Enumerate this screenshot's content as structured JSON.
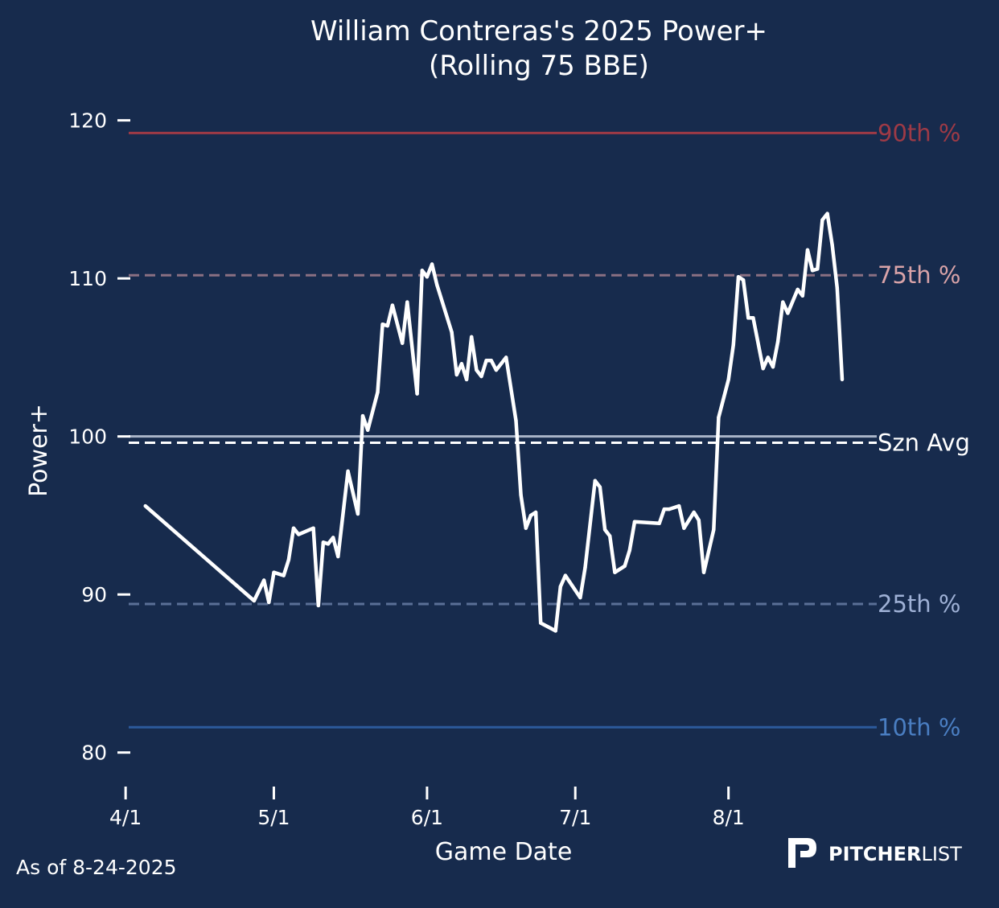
{
  "colors": {
    "background": "#172b4d",
    "series": "#ffffff",
    "p90": "#9e3a46",
    "p75": "#d9a3a8",
    "p75_line": "#8a7082",
    "p25": "#9fb1d6",
    "p25_line": "#5a6f96",
    "p10": "#4a7ec2",
    "p10_line": "#2c5a9c",
    "league_avg_line": "#a9b4c8",
    "text": "#ffffff"
  },
  "chart_data": {
    "type": "line",
    "title": "William Contreras's 2025 Power+",
    "subtitle": "(Rolling 75 BBE)",
    "xlabel": "Game Date",
    "ylabel": "Power+",
    "x_type": "date",
    "xlim": [
      "2025-03-31",
      "2025-08-31"
    ],
    "ylim": [
      78,
      121
    ],
    "x_ticks": [
      {
        "date": "2025-04-01",
        "label": "4/1"
      },
      {
        "date": "2025-05-01",
        "label": "5/1"
      },
      {
        "date": "2025-06-01",
        "label": "6/1"
      },
      {
        "date": "2025-07-01",
        "label": "7/1"
      },
      {
        "date": "2025-08-01",
        "label": "8/1"
      }
    ],
    "y_ticks": [
      80,
      90,
      100,
      110,
      120
    ],
    "grid": false,
    "reference_lines": [
      {
        "label": "90th %",
        "value": 119.2,
        "style": "solid",
        "color_key": "p90",
        "line_color_key": "p90"
      },
      {
        "label": "75th %",
        "value": 110.2,
        "style": "dashed",
        "color_key": "p75",
        "line_color_key": "p75_line"
      },
      {
        "label": "",
        "value": 100.0,
        "style": "solid",
        "color_key": "text",
        "line_color_key": "league_avg_line"
      },
      {
        "label": "Szn Avg",
        "value": 99.6,
        "style": "dashed",
        "color_key": "text",
        "line_color_key": "text"
      },
      {
        "label": "25th %",
        "value": 89.4,
        "style": "dashed",
        "color_key": "p25",
        "line_color_key": "p25_line"
      },
      {
        "label": "10th %",
        "value": 81.6,
        "style": "solid",
        "color_key": "p10",
        "line_color_key": "p10_line"
      }
    ],
    "series": [
      {
        "points": [
          [
            "2025-04-05",
            95.6
          ],
          [
            "2025-04-27",
            89.6
          ],
          [
            "2025-04-29",
            90.9
          ],
          [
            "2025-04-30",
            89.5
          ],
          [
            "2025-05-01",
            91.4
          ],
          [
            "2025-05-03",
            91.2
          ],
          [
            "2025-05-04",
            92.2
          ],
          [
            "2025-05-05",
            94.2
          ],
          [
            "2025-05-06",
            93.8
          ],
          [
            "2025-05-09",
            94.2
          ],
          [
            "2025-05-10",
            89.3
          ],
          [
            "2025-05-11",
            93.3
          ],
          [
            "2025-05-12",
            93.2
          ],
          [
            "2025-05-13",
            93.6
          ],
          [
            "2025-05-14",
            92.4
          ],
          [
            "2025-05-16",
            97.8
          ],
          [
            "2025-05-18",
            95.1
          ],
          [
            "2025-05-19",
            101.3
          ],
          [
            "2025-05-20",
            100.4
          ],
          [
            "2025-05-22",
            102.8
          ],
          [
            "2025-05-23",
            107.1
          ],
          [
            "2025-05-24",
            107.0
          ],
          [
            "2025-05-25",
            108.3
          ],
          [
            "2025-05-27",
            105.9
          ],
          [
            "2025-05-28",
            108.5
          ],
          [
            "2025-05-30",
            102.7
          ],
          [
            "2025-05-31",
            110.5
          ],
          [
            "2025-06-01",
            110.1
          ],
          [
            "2025-06-02",
            110.9
          ],
          [
            "2025-06-03",
            109.6
          ],
          [
            "2025-06-06",
            106.6
          ],
          [
            "2025-06-07",
            103.9
          ],
          [
            "2025-06-08",
            104.6
          ],
          [
            "2025-06-09",
            103.6
          ],
          [
            "2025-06-10",
            106.3
          ],
          [
            "2025-06-11",
            104.2
          ],
          [
            "2025-06-12",
            103.8
          ],
          [
            "2025-06-13",
            104.8
          ],
          [
            "2025-06-14",
            104.8
          ],
          [
            "2025-06-15",
            104.2
          ],
          [
            "2025-06-17",
            105.0
          ],
          [
            "2025-06-19",
            101.0
          ],
          [
            "2025-06-20",
            96.3
          ],
          [
            "2025-06-21",
            94.2
          ],
          [
            "2025-06-22",
            95.0
          ],
          [
            "2025-06-23",
            95.2
          ],
          [
            "2025-06-24",
            88.2
          ],
          [
            "2025-06-27",
            87.7
          ],
          [
            "2025-06-28",
            90.5
          ],
          [
            "2025-06-29",
            91.2
          ],
          [
            "2025-07-02",
            89.8
          ],
          [
            "2025-07-03",
            91.7
          ],
          [
            "2025-07-05",
            97.2
          ],
          [
            "2025-07-06",
            96.8
          ],
          [
            "2025-07-07",
            94.1
          ],
          [
            "2025-07-08",
            93.7
          ],
          [
            "2025-07-09",
            91.4
          ],
          [
            "2025-07-11",
            91.8
          ],
          [
            "2025-07-12",
            92.8
          ],
          [
            "2025-07-13",
            94.6
          ],
          [
            "2025-07-18",
            94.5
          ],
          [
            "2025-07-19",
            95.4
          ],
          [
            "2025-07-20",
            95.4
          ],
          [
            "2025-07-22",
            95.6
          ],
          [
            "2025-07-23",
            94.2
          ],
          [
            "2025-07-25",
            95.2
          ],
          [
            "2025-07-26",
            94.7
          ],
          [
            "2025-07-27",
            91.4
          ],
          [
            "2025-07-29",
            94.1
          ],
          [
            "2025-07-30",
            101.2
          ],
          [
            "2025-08-01",
            103.6
          ],
          [
            "2025-08-02",
            105.8
          ],
          [
            "2025-08-03",
            110.1
          ],
          [
            "2025-08-04",
            109.9
          ],
          [
            "2025-08-05",
            107.5
          ],
          [
            "2025-08-06",
            107.5
          ],
          [
            "2025-08-08",
            104.3
          ],
          [
            "2025-08-09",
            105.0
          ],
          [
            "2025-08-10",
            104.4
          ],
          [
            "2025-08-11",
            106.0
          ],
          [
            "2025-08-12",
            108.5
          ],
          [
            "2025-08-13",
            107.8
          ],
          [
            "2025-08-15",
            109.3
          ],
          [
            "2025-08-16",
            108.9
          ],
          [
            "2025-08-17",
            111.8
          ],
          [
            "2025-08-18",
            110.5
          ],
          [
            "2025-08-19",
            110.6
          ],
          [
            "2025-08-20",
            113.7
          ],
          [
            "2025-08-21",
            114.1
          ],
          [
            "2025-08-22",
            112.1
          ],
          [
            "2025-08-23",
            109.4
          ],
          [
            "2025-08-24",
            103.6
          ]
        ]
      }
    ]
  },
  "footer": {
    "as_of": "As of 8-24-2025",
    "brand_bold": "PITCHER",
    "brand_light": "LIST"
  }
}
